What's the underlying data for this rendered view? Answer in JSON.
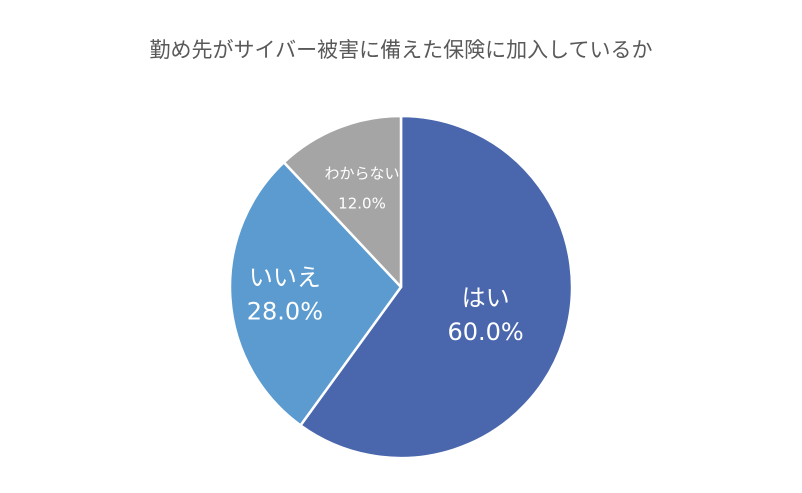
{
  "chart_data": {
    "type": "pie",
    "title": "勤め先がサイバー被害に備えた保険に加入しているか",
    "slices": [
      {
        "label": "はい",
        "value": 60.0,
        "value_label": "60.0%",
        "color": "#4A67AE"
      },
      {
        "label": "いいえ",
        "value": 28.0,
        "value_label": "28.0%",
        "color": "#5B9BD0"
      },
      {
        "label": "わからない",
        "value": 12.0,
        "value_label": "12.0%",
        "color": "#A5A5A5"
      }
    ],
    "start_angle_deg": 0,
    "direction": "clockwise",
    "legend": "none",
    "data_labels": "inside"
  }
}
